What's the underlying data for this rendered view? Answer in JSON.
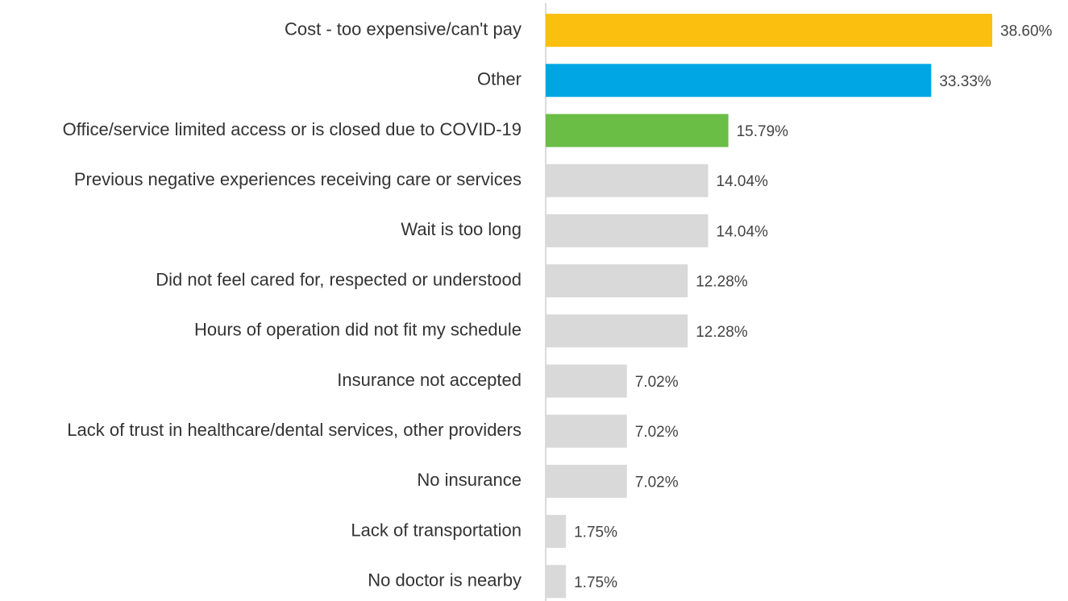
{
  "chart_data": {
    "type": "hbar",
    "categories": [
      "Cost - too expensive/can't pay",
      "Other",
      "Office/service limited access or is closed due to COVID-19",
      "Previous negative experiences receiving care or services",
      "Wait is too long",
      "Did not feel cared for, respected or understood",
      "Hours of operation did not fit my schedule",
      "Insurance not accepted",
      "Lack of trust in healthcare/dental services, other providers",
      "No insurance",
      "Lack of transportation",
      "No doctor is nearby"
    ],
    "values": [
      38.6,
      33.33,
      15.79,
      14.04,
      14.04,
      12.28,
      12.28,
      7.02,
      7.02,
      7.02,
      1.75,
      1.75
    ],
    "value_labels": [
      "38.60%",
      "33.33%",
      "15.79%",
      "14.04%",
      "14.04%",
      "12.28%",
      "12.28%",
      "7.02%",
      "7.02%",
      "7.02%",
      "1.75%",
      "1.75%"
    ],
    "colors": [
      "#fbbf10",
      "#00a6e4",
      "#6abd45",
      "#d9d9d9",
      "#d9d9d9",
      "#d9d9d9",
      "#d9d9d9",
      "#d9d9d9",
      "#d9d9d9",
      "#d9d9d9",
      "#d9d9d9",
      "#d9d9d9"
    ]
  }
}
